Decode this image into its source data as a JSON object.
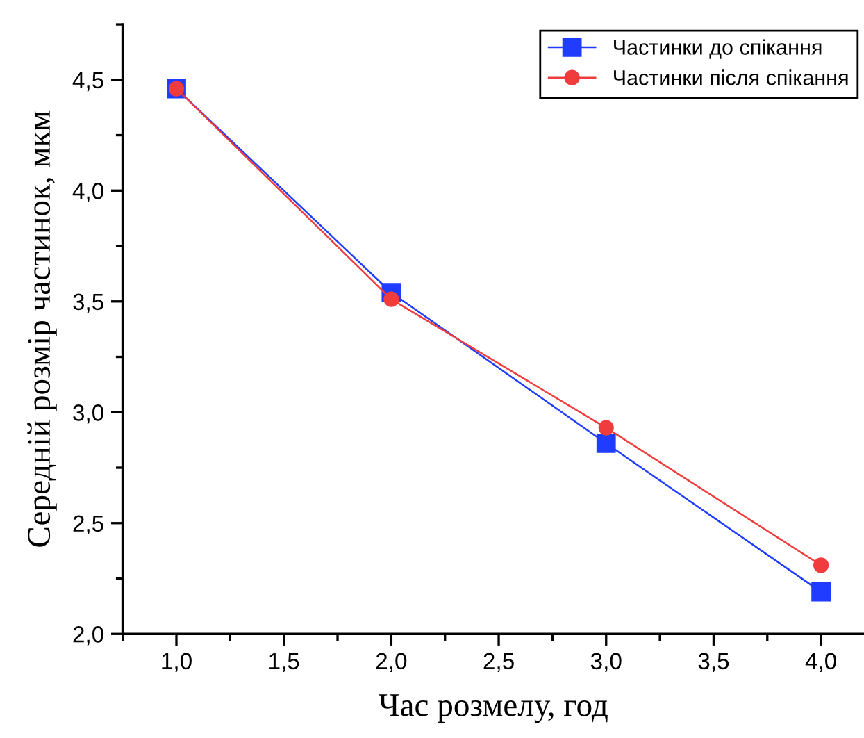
{
  "chart_data": {
    "type": "line",
    "xlabel": "Час розмелу, год",
    "ylabel": "Середній розмір частинок, мкм",
    "x": [
      1,
      2,
      3,
      4
    ],
    "series": [
      {
        "name": "Частинки до спікання",
        "color": "#1f3cff",
        "marker": "square",
        "values": [
          4.46,
          3.54,
          2.86,
          2.19
        ]
      },
      {
        "name": "Частинки після спікання",
        "color": "#f03c3c",
        "marker": "circle",
        "values": [
          4.46,
          3.51,
          2.93,
          2.31
        ]
      }
    ],
    "xlim": [
      0.75,
      4.2
    ],
    "ylim": [
      2.0,
      4.75
    ],
    "xticks": [
      {
        "value": 1.0,
        "label": "1,0"
      },
      {
        "value": 1.5,
        "label": "1,5"
      },
      {
        "value": 2.0,
        "label": "2,0"
      },
      {
        "value": 2.5,
        "label": "2,5"
      },
      {
        "value": 3.0,
        "label": "3,0"
      },
      {
        "value": 3.5,
        "label": "3,5"
      },
      {
        "value": 4.0,
        "label": "4,0"
      }
    ],
    "yticks": [
      {
        "value": 2.0,
        "label": "2,0"
      },
      {
        "value": 2.5,
        "label": "2,5"
      },
      {
        "value": 3.0,
        "label": "3,0"
      },
      {
        "value": 3.5,
        "label": "3,5"
      },
      {
        "value": 4.0,
        "label": "4,0"
      },
      {
        "value": 4.5,
        "label": "4,5"
      }
    ],
    "grid": false,
    "legend": "top right",
    "line_style": "solid"
  }
}
